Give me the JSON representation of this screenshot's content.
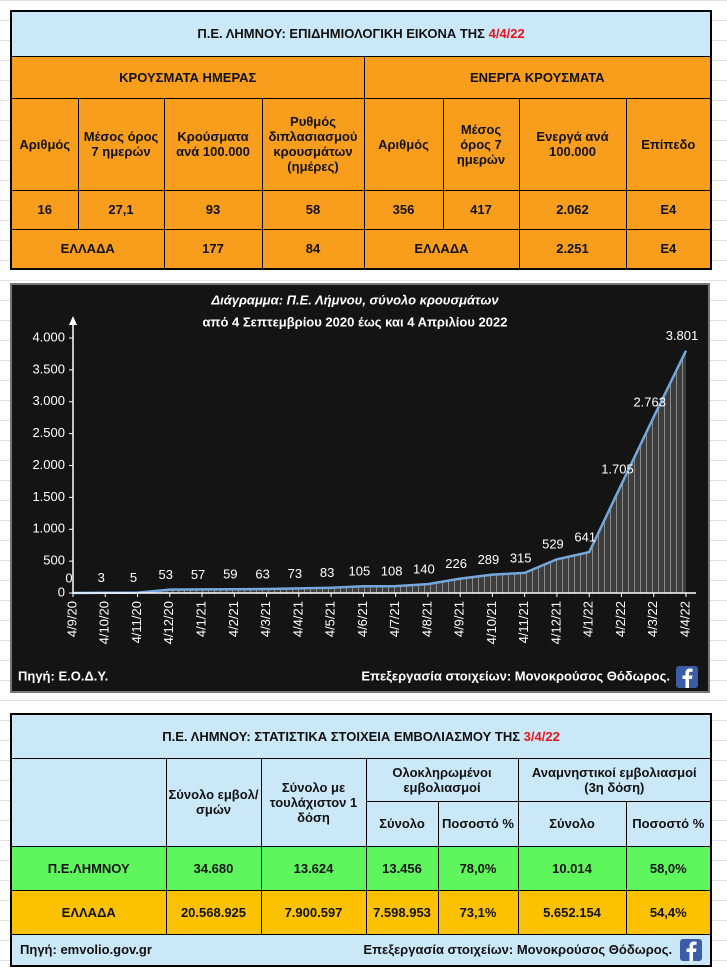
{
  "table1": {
    "title": "Π.Ε. ΛΗΜΝΟΥ: ΕΠΙΔΗΜΙΟΛΟΓΙΚΗ ΕΙΚΟΝΑ ΤΗΣ",
    "date": "4/4/22",
    "sections": [
      "ΚΡΟΥΣΜΑΤΑ ΗΜΕΡΑΣ",
      "ΕΝΕΡΓΑ ΚΡΟΥΣΜΑΤΑ"
    ],
    "headers": [
      "Αριθμός",
      "Μέσος όρος 7 ημερών",
      "Κρούσματα ανά 100.000",
      "Ρυθμός διπλασιασμού κρουσμάτων (ημέρες)",
      "Αριθμός",
      "Μέσος όρος 7 ημερών",
      "Ενεργά ανά 100.000",
      "Επίπεδο"
    ],
    "row": [
      "16",
      "27,1",
      "93",
      "58",
      "356",
      "417",
      "2.062",
      "Ε4"
    ],
    "greece_row": [
      "ΕΛΛΑΔΑ",
      "177",
      "84",
      "ΕΛΛΑΔΑ",
      "2.251",
      "Ε4"
    ]
  },
  "chart_data": {
    "type": "area",
    "title": "Διάγραμμα:  Π.Ε. Λήμνου, σύνολο κρουσμάτων",
    "subtitle": "από 4 Σεπτεμβρίου 2020 έως και 4 Απριλίου 2022",
    "categories": [
      "4/9/20",
      "4/10/20",
      "4/11/20",
      "4/12/20",
      "4/1/21",
      "4/2/21",
      "4/3/21",
      "4/4/21",
      "4/5/21",
      "4/6/21",
      "4/7/21",
      "4/8/21",
      "4/9/21",
      "4/10/21",
      "4/11/21",
      "4/12/21",
      "4/1/22",
      "4/2/22",
      "4/3/22",
      "4/4/22"
    ],
    "values": [
      0,
      3,
      5,
      53,
      57,
      59,
      63,
      73,
      83,
      105,
      108,
      140,
      226,
      289,
      315,
      529,
      641,
      1705,
      2763,
      3801
    ],
    "value_labels": [
      "0",
      "3",
      "5",
      "53",
      "57",
      "59",
      "63",
      "73",
      "83",
      "105",
      "108",
      "140",
      "226",
      "289",
      "315",
      "529",
      "641",
      "1.705",
      "2.763",
      "3.801"
    ],
    "color": "#74a7dc",
    "ylim": [
      0,
      4000
    ],
    "yticks": [
      0,
      500,
      {
        "value": 1000,
        "label": "1.000"
      },
      {
        "value": 1500,
        "label": "1.500"
      },
      {
        "value": 2000,
        "label": "2.000"
      },
      {
        "value": 2500,
        "label": "2.500"
      },
      {
        "value": 3000,
        "label": "3.000"
      },
      {
        "value": 3500,
        "label": "3.500"
      },
      {
        "value": 4000,
        "label": "4.000"
      }
    ],
    "source": "Πηγή: Ε.Ο.Δ.Υ.",
    "credit": "Επεξεργασία  στοιχείων: Μονοκρούσος Θόδωρος."
  },
  "table2": {
    "title": "Π.Ε. ΛΗΜΝΟΥ: ΣΤΑΤΙΣΤΙΚΑ ΣΤΟΙΧΕΙΑ ΕΜΒΟΛΙΑΣΜΟΥ ΤΗΣ",
    "date": "3/4/22",
    "headers": [
      "Σύνολο εμβολ/σμών",
      "Σύνολο με τουλάχιστον 1 δόση",
      "Ολοκληρωμένοι εμβολιασμοί",
      "Αναμνηστικοί εμβολιασμοί (3η δόση)"
    ],
    "subheaders": [
      "Σύνολο",
      "Ποσοστό %",
      "Σύνολο",
      "Ποσοστό %"
    ],
    "rows": [
      [
        "Π.Ε.ΛΗΜΝΟΥ",
        "34.680",
        "13.624",
        "13.456",
        "78,0%",
        "10.014",
        "58,0%"
      ],
      [
        "ΕΛΛΑΔΑ",
        "20.568.925",
        "7.900.597",
        "7.598.953",
        "73,1%",
        "5.652.154",
        "54,4%"
      ]
    ],
    "source": "Πηγή: emvolio.gov.gr",
    "credit": "Επεξεργασία στοιχείων: Μονοκρούσος Θόδωρος."
  }
}
